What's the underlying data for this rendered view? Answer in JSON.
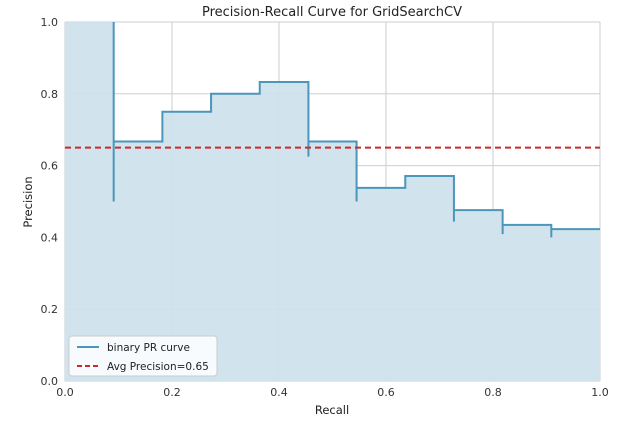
{
  "chart_data": {
    "type": "line",
    "title": "Precision-Recall Curve for GridSearchCV",
    "xlabel": "Recall",
    "ylabel": "Precision",
    "xlim": [
      0.0,
      1.0
    ],
    "ylim": [
      0.0,
      1.0
    ],
    "x_ticks": [
      "0.0",
      "0.2",
      "0.4",
      "0.6",
      "0.8",
      "1.0"
    ],
    "y_ticks": [
      "0.0",
      "0.2",
      "0.4",
      "0.6",
      "0.8",
      "1.0"
    ],
    "grid": true,
    "legend_position": "bottom-left",
    "series": [
      {
        "name": "binary PR curve",
        "style": "step",
        "fill_under": true,
        "color": "#4c96ba",
        "fill_color": "#cfe2ec",
        "points": [
          [
            0.091,
            1.0
          ],
          [
            0.091,
            0.5
          ],
          [
            0.091,
            0.667
          ],
          [
            0.182,
            0.667
          ],
          [
            0.182,
            0.75
          ],
          [
            0.273,
            0.75
          ],
          [
            0.273,
            0.8
          ],
          [
            0.364,
            0.8
          ],
          [
            0.364,
            0.833
          ],
          [
            0.455,
            0.833
          ],
          [
            0.455,
            0.625
          ],
          [
            0.455,
            0.667
          ],
          [
            0.545,
            0.667
          ],
          [
            0.545,
            0.5
          ],
          [
            0.545,
            0.538
          ],
          [
            0.636,
            0.538
          ],
          [
            0.636,
            0.571
          ],
          [
            0.727,
            0.571
          ],
          [
            0.727,
            0.444
          ],
          [
            0.727,
            0.476
          ],
          [
            0.818,
            0.476
          ],
          [
            0.818,
            0.409
          ],
          [
            0.818,
            0.435
          ],
          [
            0.909,
            0.435
          ],
          [
            0.909,
            0.4
          ],
          [
            0.909,
            0.423
          ],
          [
            1.0,
            0.423
          ]
        ]
      },
      {
        "name": "Avg Precision=0.65",
        "style": "dashed-horizontal",
        "color": "#cc2a2a",
        "y": 0.65
      }
    ]
  }
}
